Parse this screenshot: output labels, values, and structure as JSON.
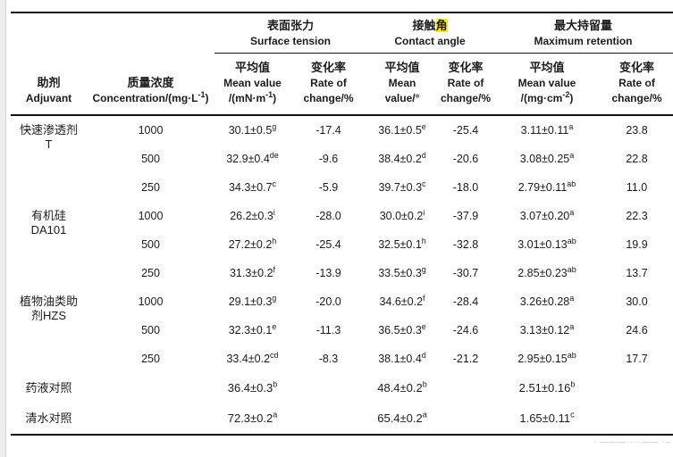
{
  "header": {
    "adjuvant": {
      "zh": "助剂",
      "en": "Adjuvant"
    },
    "concentration": {
      "zh": "质量浓度",
      "en_pre": "Concentration/(mg·L",
      "en_sup": "-1",
      "en_post": ")"
    },
    "groups": [
      {
        "zh": "表面张力",
        "en": "Surface tension"
      },
      {
        "zh_pre": "接触",
        "zh_hl": "角",
        "en": "Contact angle"
      },
      {
        "zh": "最大持留量",
        "en": "Maximum retention"
      }
    ],
    "subs": {
      "st_mean": {
        "zh": "平均值",
        "en1": "Mean value",
        "en2_pre": "/(mN·m",
        "en2_sup": "-1",
        "en2_post": ")"
      },
      "st_rate": {
        "zh": "变化率",
        "en1": "Rate of",
        "en2": "change/%"
      },
      "ca_mean": {
        "zh": "平均值",
        "en1": "Mean",
        "en2": "value/°"
      },
      "ca_rate": {
        "zh": "变化率",
        "en1": "Rate of",
        "en2": "change/%"
      },
      "mr_mean": {
        "zh": "平均值",
        "en1": "Mean value",
        "en2_pre": "/(mg·cm",
        "en2_sup": "-2",
        "en2_post": ")"
      },
      "mr_rate": {
        "zh": "变化率",
        "en1": "Rate of",
        "en2": "change/%"
      }
    }
  },
  "body": {
    "groups": [
      {
        "name_lines": [
          "快速渗透剂",
          "T"
        ],
        "rows": [
          {
            "conc": "1000",
            "st": [
              "30.1±0.5",
              "g"
            ],
            "st_rate": "-17.4",
            "ca": [
              "36.1±0.5",
              "e"
            ],
            "ca_rate": "-25.4",
            "mr": [
              "3.11±0.11",
              "a"
            ],
            "mr_rate": "23.8"
          },
          {
            "conc": "500",
            "st": [
              "32.9±0.4",
              "de"
            ],
            "st_rate": "-9.6",
            "ca": [
              "38.4±0.2",
              "d"
            ],
            "ca_rate": "-20.6",
            "mr": [
              "3.08±0.25",
              "a"
            ],
            "mr_rate": "22.8"
          },
          {
            "conc": "250",
            "st": [
              "34.3±0.7",
              "c"
            ],
            "st_rate": "-5.9",
            "ca": [
              "39.7±0.3",
              "c"
            ],
            "ca_rate": "-18.0",
            "mr": [
              "2.79±0.11",
              "ab"
            ],
            "mr_rate": "11.0"
          }
        ]
      },
      {
        "name_lines": [
          "有机硅",
          "DA101"
        ],
        "rows": [
          {
            "conc": "1000",
            "st": [
              "26.2±0.3",
              "i"
            ],
            "st_rate": "-28.0",
            "ca": [
              "30.0±0.2",
              "i"
            ],
            "ca_rate": "-37.9",
            "mr": [
              "3.07±0.20",
              "a"
            ],
            "mr_rate": "22.3"
          },
          {
            "conc": "500",
            "st": [
              "27.2±0.2",
              "h"
            ],
            "st_rate": "-25.4",
            "ca": [
              "32.5±0.1",
              "h"
            ],
            "ca_rate": "-32.8",
            "mr": [
              "3.01±0.13",
              "ab"
            ],
            "mr_rate": "19.9"
          },
          {
            "conc": "250",
            "st": [
              "31.3±0.2",
              "f"
            ],
            "st_rate": "-13.9",
            "ca": [
              "33.5±0.3",
              "g"
            ],
            "ca_rate": "-30.7",
            "mr": [
              "2.85±0.23",
              "ab"
            ],
            "mr_rate": "13.7"
          }
        ]
      },
      {
        "name_lines": [
          "植物油类助",
          "剂HZS"
        ],
        "rows": [
          {
            "conc": "1000",
            "st": [
              "29.1±0.3",
              "g"
            ],
            "st_rate": "-20.0",
            "ca": [
              "34.6±0.2",
              "f"
            ],
            "ca_rate": "-28.4",
            "mr": [
              "3.26±0.28",
              "a"
            ],
            "mr_rate": "30.0"
          },
          {
            "conc": "500",
            "st": [
              "32.3±0.1",
              "e"
            ],
            "st_rate": "-11.3",
            "ca": [
              "36.5±0.3",
              "e"
            ],
            "ca_rate": "-24.6",
            "mr": [
              "3.13±0.12",
              "a"
            ],
            "mr_rate": "24.6"
          },
          {
            "conc": "250",
            "st": [
              "33.4±0.2",
              "cd"
            ],
            "st_rate": "-8.3",
            "ca": [
              "38.1±0.4",
              "d"
            ],
            "ca_rate": "-21.2",
            "mr": [
              "2.95±0.15",
              "ab"
            ],
            "mr_rate": "17.7"
          }
        ]
      }
    ],
    "controls": [
      {
        "name": "药液对照",
        "st": [
          "36.4±0.3",
          "b"
        ],
        "ca": [
          "48.4±0.2",
          "b"
        ],
        "mr": [
          "2.51±0.16",
          "b"
        ]
      },
      {
        "name": "清水对照",
        "st": [
          "72.3±0.2",
          "a"
        ],
        "ca": [
          "65.4±0.2",
          "a"
        ],
        "mr": [
          "1.65±0.11",
          "c"
        ]
      }
    ]
  },
  "footer": {
    "marks": "· ———····—— ·—"
  },
  "colors": {
    "highlight": "#ffee00",
    "rule": "#111111",
    "strip": "#ededed"
  }
}
